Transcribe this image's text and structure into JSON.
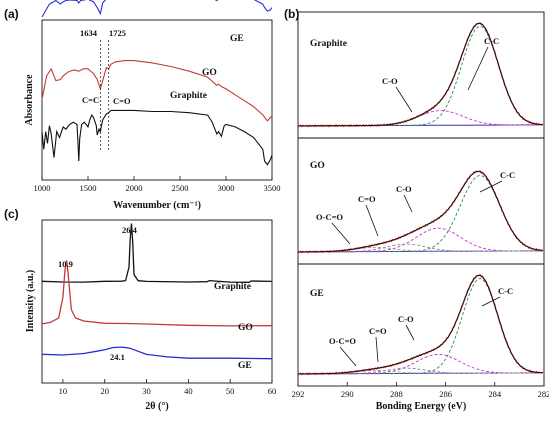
{
  "chart_data": [
    {
      "panel": "(a)",
      "type": "line",
      "xlabel": "Wavenumber (cm⁻¹)",
      "ylabel": "Absorbance",
      "xlim": [
        1000,
        3500
      ],
      "x_ticks": [
        "1000",
        "1500",
        "2000",
        "2500",
        "3000",
        "3500"
      ],
      "series": [
        {
          "name": "GE",
          "color": "#2b2bd6",
          "x": [
            1000,
            1080,
            1150,
            1200,
            1230,
            1260,
            1300,
            1380,
            1400,
            1420,
            1500,
            1560,
            1600,
            1634,
            1660,
            1700,
            1725,
            1750,
            1800,
            2000,
            2200,
            2300,
            2330,
            2360,
            2400,
            2600,
            2800,
            2850,
            2900,
            2920,
            2950,
            3000,
            3100,
            3200,
            3300,
            3400,
            3420,
            3450,
            3480,
            3500
          ],
          "y": [
            0.72,
            0.83,
            0.86,
            0.83,
            0.85,
            0.86,
            0.865,
            0.86,
            0.84,
            0.86,
            0.87,
            0.85,
            0.8,
            0.75,
            0.84,
            0.875,
            0.87,
            0.878,
            0.88,
            0.885,
            0.89,
            0.888,
            0.87,
            0.89,
            0.89,
            0.89,
            0.89,
            0.88,
            0.86,
            0.87,
            0.88,
            0.885,
            0.885,
            0.88,
            0.87,
            0.83,
            0.8,
            0.77,
            0.78,
            0.8
          ]
        },
        {
          "name": "GO",
          "color": "#c43a3a",
          "x": [
            1000,
            1050,
            1100,
            1150,
            1200,
            1230,
            1260,
            1300,
            1350,
            1400,
            1450,
            1500,
            1560,
            1600,
            1634,
            1660,
            1700,
            1725,
            1750,
            1800,
            1900,
            2000,
            2200,
            2400,
            2600,
            2800,
            2900,
            2920,
            2950,
            3000,
            3100,
            3200,
            3300,
            3400,
            3450,
            3500
          ],
          "y": [
            0.36,
            0.56,
            0.62,
            0.52,
            0.53,
            0.56,
            0.58,
            0.6,
            0.61,
            0.6,
            0.62,
            0.62,
            0.58,
            0.53,
            0.45,
            0.52,
            0.63,
            0.62,
            0.66,
            0.68,
            0.69,
            0.69,
            0.67,
            0.64,
            0.6,
            0.55,
            0.48,
            0.49,
            0.47,
            0.45,
            0.4,
            0.35,
            0.3,
            0.23,
            0.18,
            0.22
          ]
        },
        {
          "name": "Graphite",
          "color": "#111111",
          "x": [
            1000,
            1020,
            1040,
            1060,
            1080,
            1100,
            1130,
            1160,
            1190,
            1230,
            1260,
            1300,
            1340,
            1380,
            1390,
            1400,
            1410,
            1430,
            1460,
            1500,
            1520,
            1540,
            1560,
            1590,
            1600,
            1620,
            1634,
            1660,
            1700,
            1725,
            1750,
            1800,
            1900,
            2000,
            2200,
            2400,
            2600,
            2800,
            2850,
            2900,
            2920,
            2950,
            2980,
            3000,
            3100,
            3200,
            3300,
            3400,
            3420,
            3450,
            3480,
            3500
          ],
          "y": [
            0.3,
            0.15,
            0.3,
            0.2,
            0.35,
            0.28,
            0.08,
            0.3,
            0.25,
            0.34,
            0.32,
            0.36,
            0.38,
            0.36,
            0.22,
            0.05,
            0.24,
            0.36,
            0.38,
            0.34,
            0.4,
            0.44,
            0.42,
            0.35,
            0.27,
            0.32,
            0.3,
            0.4,
            0.45,
            0.46,
            0.48,
            0.48,
            0.48,
            0.48,
            0.47,
            0.47,
            0.46,
            0.44,
            0.38,
            0.28,
            0.3,
            0.26,
            0.35,
            0.36,
            0.34,
            0.3,
            0.25,
            0.15,
            0.05,
            0.02,
            0.06,
            0.1
          ]
        }
      ],
      "annotations": [
        {
          "text": "1634",
          "x": 1634
        },
        {
          "text": "1725",
          "x": 1725
        },
        {
          "text": "C=C"
        },
        {
          "text": "C=O"
        }
      ]
    },
    {
      "panel": "(c)",
      "type": "line",
      "xlabel": "2θ (°)",
      "ylabel": "Intensity (a.u.)",
      "xlim": [
        5,
        60
      ],
      "x_ticks": [
        "10",
        "20",
        "30",
        "40",
        "50",
        "60"
      ],
      "series": [
        {
          "name": "Graphite",
          "color": "#111111",
          "x": [
            5,
            10,
            15,
            20,
            24,
            25,
            25.8,
            26.1,
            26.4,
            26.7,
            27.0,
            28,
            30,
            40,
            44.5,
            45,
            50,
            54.5,
            55,
            60
          ],
          "y": [
            0.6,
            0.6,
            0.6,
            0.6,
            0.602,
            0.61,
            0.7,
            0.88,
            0.98,
            0.86,
            0.65,
            0.605,
            0.6,
            0.6,
            0.6,
            0.605,
            0.6,
            0.6,
            0.605,
            0.6
          ]
        },
        {
          "name": "GO",
          "color": "#c43a3a",
          "x": [
            5,
            7,
            9,
            10,
            10.5,
            10.9,
            11.3,
            12,
            13,
            15,
            20,
            25,
            30,
            40,
            50,
            60
          ],
          "y": [
            0.32,
            0.33,
            0.36,
            0.5,
            0.68,
            0.74,
            0.64,
            0.42,
            0.36,
            0.34,
            0.33,
            0.325,
            0.32,
            0.315,
            0.31,
            0.31
          ]
        },
        {
          "name": "GE",
          "color": "#2b2bd6",
          "x": [
            5,
            10,
            15,
            18,
            20,
            22,
            24.1,
            26,
            28,
            30,
            35,
            40,
            50,
            60
          ],
          "y": [
            0.12,
            0.12,
            0.13,
            0.14,
            0.15,
            0.165,
            0.17,
            0.16,
            0.14,
            0.12,
            0.105,
            0.1,
            0.095,
            0.095
          ]
        }
      ],
      "annotations": [
        {
          "text": "26.4",
          "x": 26.4
        },
        {
          "text": "10.9",
          "x": 10.9
        },
        {
          "text": "24.1",
          "x": 24.1
        }
      ]
    },
    {
      "panel": "(b)",
      "type": "line",
      "xlabel": "Bonding Energy (eV)",
      "xlim": [
        292,
        282
      ],
      "x_ticks": [
        "292",
        "290",
        "288",
        "286",
        "284",
        "282"
      ],
      "subplots": [
        {
          "name": "Graphite",
          "peaks": [
            {
              "label": "C-C",
              "center": 284.6,
              "amp": 0.94,
              "width": 0.75
            },
            {
              "label": "C-O",
              "center": 286.2,
              "amp": 0.14,
              "width": 0.9
            }
          ]
        },
        {
          "name": "GO",
          "peaks": [
            {
              "label": "C-C",
              "center": 284.6,
              "amp": 0.72,
              "width": 0.8
            },
            {
              "label": "C-O",
              "center": 286.3,
              "amp": 0.22,
              "width": 0.9
            },
            {
              "label": "C=O",
              "center": 287.6,
              "amp": 0.07,
              "width": 0.8
            },
            {
              "label": "O-C=O",
              "center": 288.9,
              "amp": 0.04,
              "width": 0.8
            }
          ]
        },
        {
          "name": "GE",
          "peaks": [
            {
              "label": "C-C",
              "center": 284.6,
              "amp": 0.9,
              "width": 0.72
            },
            {
              "label": "C-O",
              "center": 286.3,
              "amp": 0.18,
              "width": 0.9
            },
            {
              "label": "C=O",
              "center": 287.6,
              "amp": 0.05,
              "width": 0.8
            },
            {
              "label": "O-C=O",
              "center": 288.9,
              "amp": 0.03,
              "width": 0.8
            }
          ]
        }
      ],
      "colors": {
        "envelope": "#111111",
        "measured": "#c43a3a",
        "baseline": "#3030b8",
        "c_c": "#2e8b57",
        "c_o": "#cc33cc",
        "c_eq_o": "#888888",
        "o_c_eq_o": "#999999"
      }
    }
  ]
}
